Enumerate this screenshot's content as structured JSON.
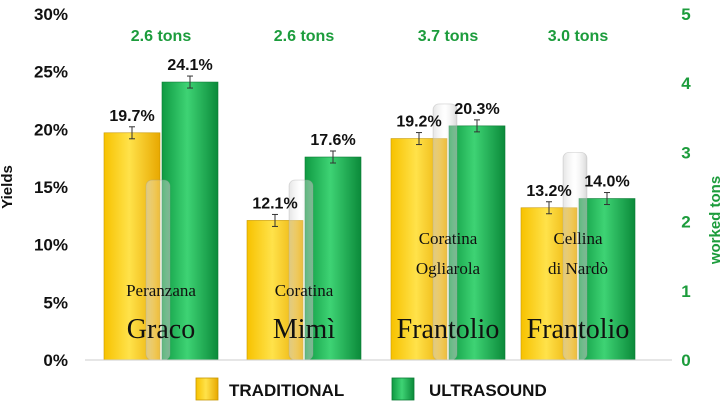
{
  "chart_data": {
    "type": "bar",
    "title": "",
    "ylabel": "Yields",
    "y2label": "worked tons",
    "ylim": [
      0,
      30
    ],
    "y2lim": [
      0,
      5
    ],
    "y_ticks": [
      "0%",
      "5%",
      "10%",
      "15%",
      "20%",
      "25%",
      "30%"
    ],
    "y2_ticks": [
      "0",
      "1",
      "2",
      "3",
      "4",
      "5"
    ],
    "groups": [
      {
        "tons_label": "2.6 tons",
        "tons": 2.6,
        "cultivar_small": [
          "Peranzana"
        ],
        "cultivar_big": "Graco",
        "traditional": 19.7,
        "ultrasound": 24.1,
        "traditional_label": "19.7%",
        "ultrasound_label": "24.1%"
      },
      {
        "tons_label": "2.6 tons",
        "tons": 2.6,
        "cultivar_small": [
          "Coratina"
        ],
        "cultivar_big": "Mimì",
        "traditional": 12.1,
        "ultrasound": 17.6,
        "traditional_label": "12.1%",
        "ultrasound_label": "17.6%"
      },
      {
        "tons_label": "3.7 tons",
        "tons": 3.7,
        "cultivar_small": [
          "Coratina",
          "Ogliarola"
        ],
        "cultivar_big": "Frantolio",
        "traditional": 19.2,
        "ultrasound": 20.3,
        "traditional_label": "19.2%",
        "ultrasound_label": "20.3%"
      },
      {
        "tons_label": "3.0 tons",
        "tons": 3.0,
        "cultivar_small": [
          "Cellina",
          "di Nardò"
        ],
        "cultivar_big": "Frantolio",
        "traditional": 13.2,
        "ultrasound": 14.0,
        "traditional_label": "13.2%",
        "ultrasound_label": "14.0%"
      }
    ],
    "series": [
      {
        "name": "TRADITIONAL",
        "color": "#f5b800"
      },
      {
        "name": "ULTRASOUND",
        "color": "#12a24a"
      }
    ],
    "legend_position": "bottom"
  }
}
